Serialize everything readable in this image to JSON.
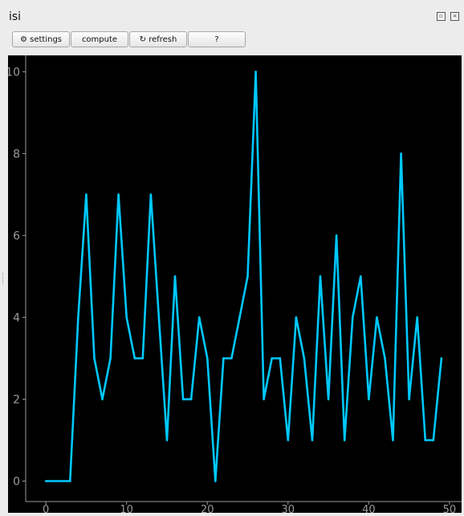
{
  "window": {
    "title": "isi"
  },
  "toolbar": {
    "settings_label": "⚙ settings",
    "compute_label": "compute",
    "refresh_label": "↻ refresh",
    "help_label": "?"
  },
  "colors": {
    "line": "#00c8ff",
    "background": "#000000",
    "axis": "#9a9a9a"
  },
  "chart_data": {
    "type": "line",
    "x": [
      0,
      1,
      2,
      3,
      4,
      5,
      6,
      7,
      8,
      9,
      10,
      11,
      12,
      13,
      14,
      15,
      16,
      17,
      18,
      19,
      20,
      21,
      22,
      23,
      24,
      25,
      26,
      27,
      28,
      29,
      30,
      31,
      32,
      33,
      34,
      35,
      36,
      37,
      38,
      39,
      40,
      41,
      42,
      43,
      44,
      45,
      46,
      47,
      48,
      49
    ],
    "y": [
      0,
      0,
      0,
      0,
      4,
      7,
      3,
      2,
      3,
      7,
      4,
      3,
      3,
      7,
      4,
      1,
      5,
      2,
      2,
      4,
      3,
      0,
      3,
      3,
      4,
      5,
      10,
      2,
      3,
      3,
      1,
      4,
      3,
      1,
      5,
      2,
      6,
      1,
      4,
      5,
      2,
      4,
      3,
      1,
      8,
      2,
      4,
      1,
      1,
      3
    ],
    "xlim": [
      -2.5,
      51.5
    ],
    "ylim": [
      -0.5,
      10.4
    ],
    "xticks": [
      0,
      10,
      20,
      30,
      40,
      50
    ],
    "yticks": [
      0,
      2,
      4,
      6,
      8,
      10
    ],
    "grid": false
  }
}
